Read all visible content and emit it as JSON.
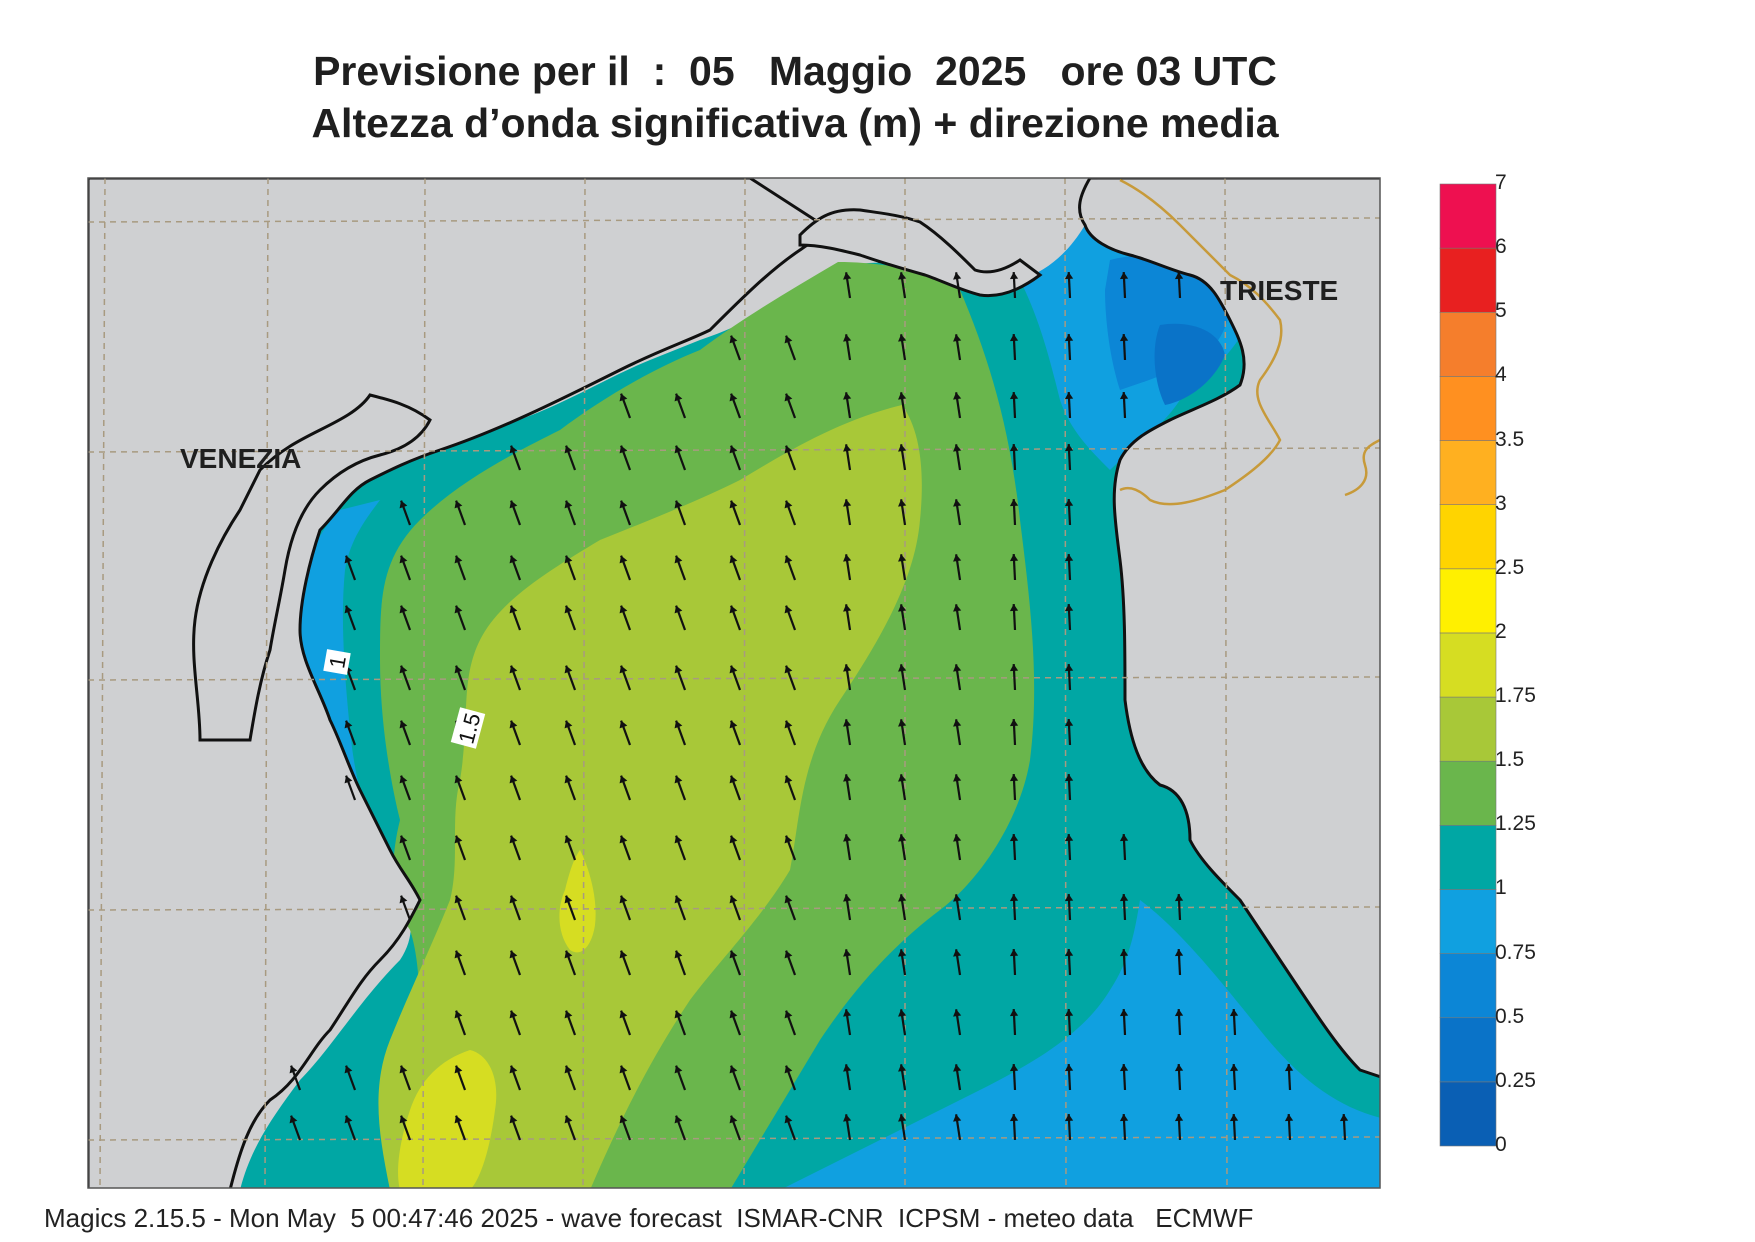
{
  "title_line1": "Previsione per il  :  05   Maggio  2025   ore 03 UTC",
  "title_line2": "Altezza d’onda significativa (m) + direzione media",
  "footer": "Magics 2.15.5 - Mon May  5 00:47:46 2025 - wave forecast  ISMAR-CNR  ICPSM - meteo data   ECMWF",
  "places": [
    {
      "name": "VENEZIA"
    },
    {
      "name": "TRIESTE"
    }
  ],
  "contour_labels": [
    "1",
    "1.5"
  ],
  "legend": {
    "title": "",
    "levels": [
      "0",
      "0.25",
      "0.5",
      "0.75",
      "1",
      "1.25",
      "1.5",
      "1.75",
      "2",
      "2.5",
      "3",
      "3.5",
      "4",
      "5",
      "6",
      "7"
    ],
    "colors": [
      "#0a5fb4",
      "#0a73c8",
      "#0c86d6",
      "#10a0e0",
      "#00a7a4",
      "#6ab64c",
      "#a8c838",
      "#d6dd22",
      "#fff000",
      "#ffd400",
      "#ffb020",
      "#ff9020",
      "#f57e2c",
      "#e82020",
      "#ee1050"
    ]
  },
  "wave_field": {
    "arrow_direction": "north / north-north-west",
    "colors": {
      "land": "#cfd0d2",
      "coast": "#111111",
      "grid": "#a89a80",
      "border": "#c79a3a"
    }
  }
}
